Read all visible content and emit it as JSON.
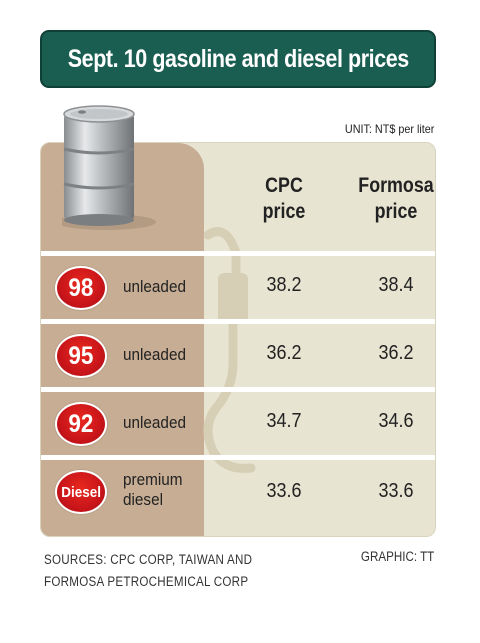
{
  "title": "Sept. 10 gasoline and diesel prices",
  "unit": "UNIT: NT$ per liter",
  "icons": [
    "oil-drum-icon",
    "fuel-pump-icon"
  ],
  "colors": {
    "title_bg": "#1a5e52",
    "badge": "#d01a1a",
    "panel_left": "#c7ad94",
    "panel_right": "#e8e4d2"
  },
  "chart_data": {
    "type": "table",
    "title": "Sept. 10 gasoline and diesel prices",
    "columns": [
      "CPC\nprice",
      "Formosa\nprice"
    ],
    "rows": [
      {
        "badge": "98",
        "label": "unleaded",
        "cpc": "38.2",
        "formosa": "38.4"
      },
      {
        "badge": "95",
        "label": "unleaded",
        "cpc": "36.2",
        "formosa": "36.2"
      },
      {
        "badge": "92",
        "label": "unleaded",
        "cpc": "34.7",
        "formosa": "34.6"
      },
      {
        "badge": "Diesel",
        "label": "premium diesel",
        "cpc": "33.6",
        "formosa": "33.6"
      }
    ]
  },
  "footer": {
    "sources_line1": "SOURCES: CPC CORP, TAIWAN AND",
    "sources_line2": "FORMOSA PETROCHEMICAL CORP",
    "credit": "GRAPHIC: TT"
  }
}
